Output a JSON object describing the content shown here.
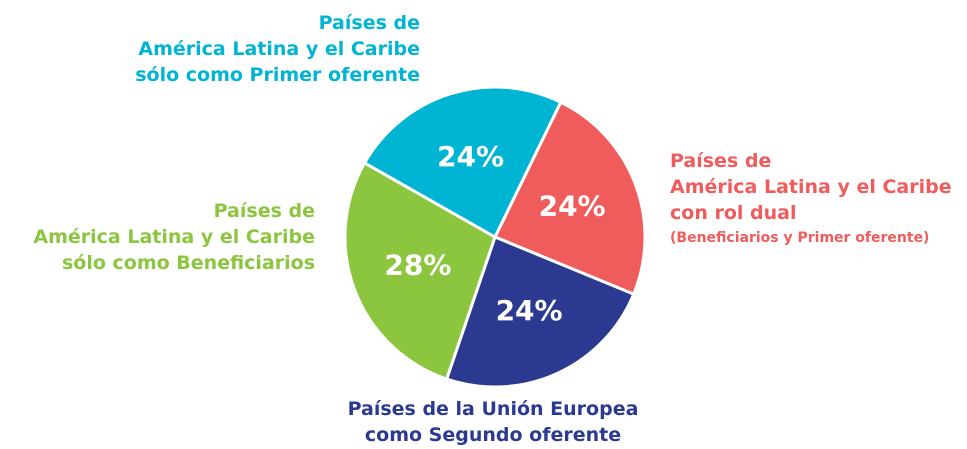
{
  "chart_data": {
    "type": "pie",
    "categories": [
      "Países de\nAmérica Latina y el Caribe\ncon rol dual",
      "Países de la Unión Europea\ncomo Segundo oferente",
      "Países de\nAmérica Latina y el Caribe\nsólo como Beneficiarios",
      "Países de\nAmérica Latina y el Caribe\nsólo como Primer oferente"
    ],
    "values": [
      24,
      24,
      28,
      24
    ],
    "value_labels": [
      "24%",
      "24%",
      "28%",
      "24%"
    ],
    "colors": [
      "#f05b5b",
      "#2b3990",
      "#8cc63f",
      "#00b4d3"
    ],
    "annotation": "(Beneficiarios y Primer oferente)"
  }
}
